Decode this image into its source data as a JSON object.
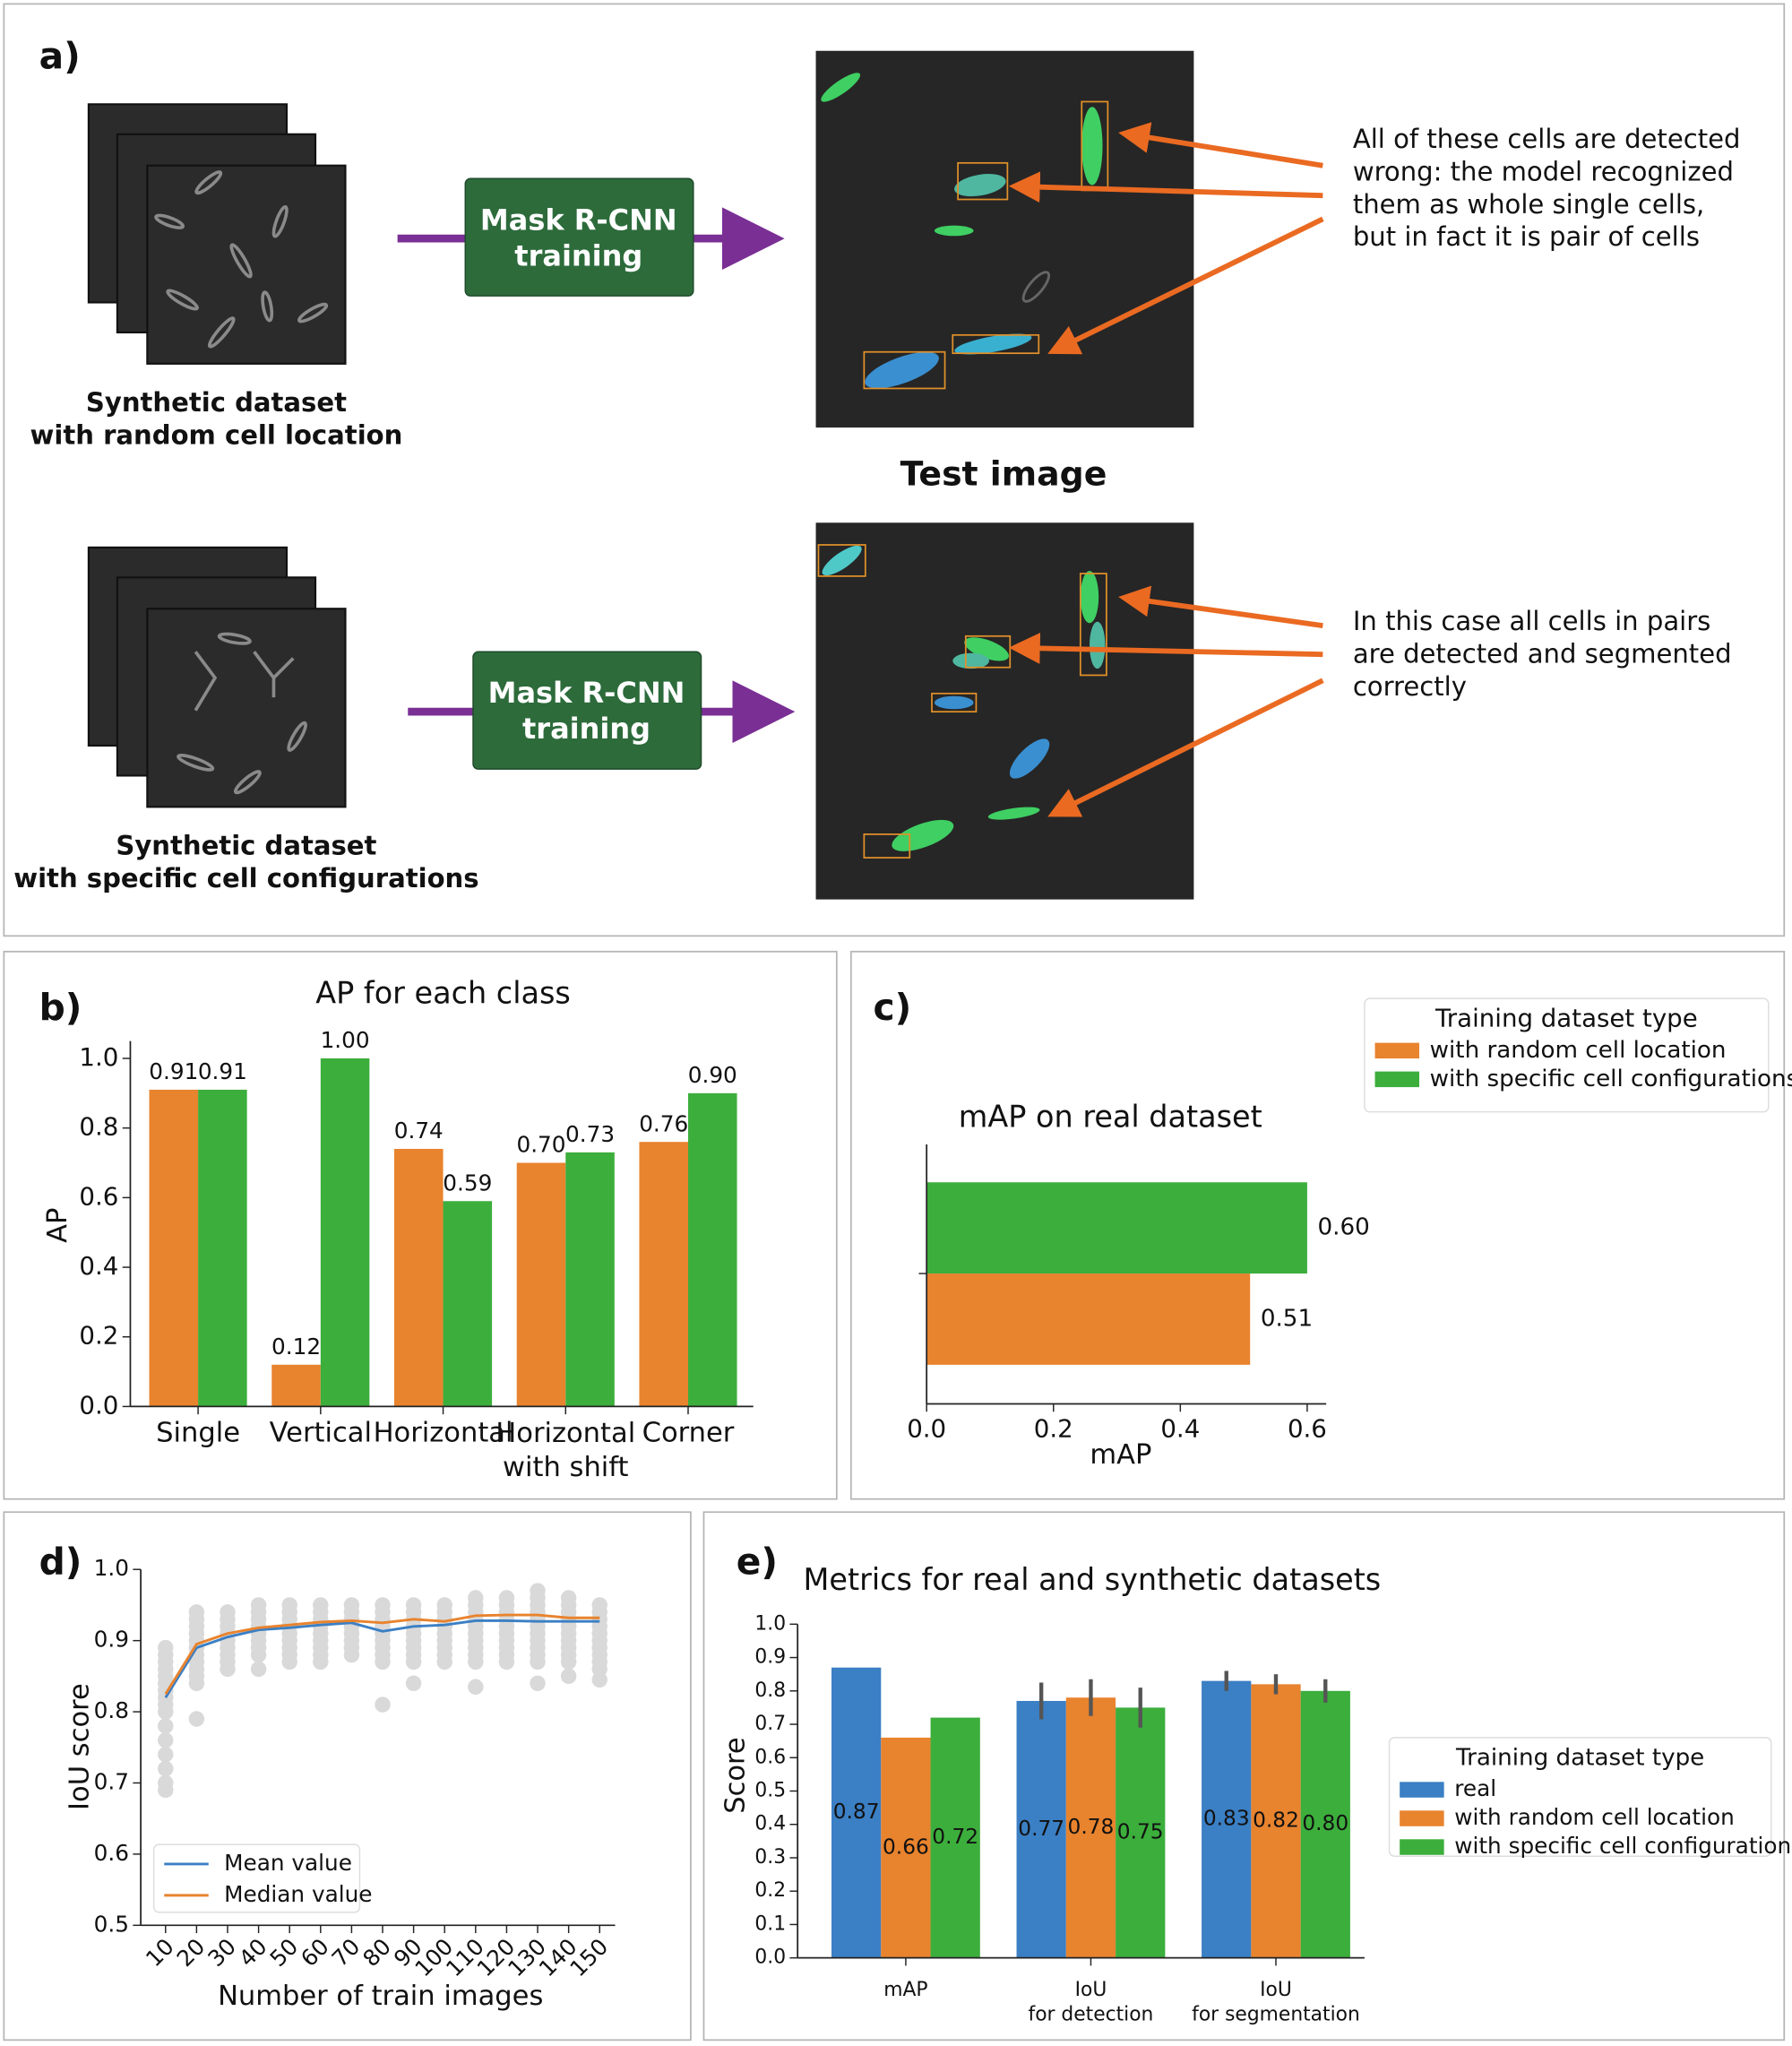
{
  "panel_a": {
    "label": "a)",
    "test_image_label": "Test image",
    "rows": [
      {
        "dataset": "Synthetic dataset\nwith random cell location",
        "model": "Mask R-CNN\ntraining",
        "annotation": "All of these cells are detected\nwrong: the model recognized\nthem as whole single cells,\nbut in fact it is pair of cells"
      },
      {
        "dataset": "Synthetic dataset\nwith specific cell configurations",
        "model": "Mask R-CNN\ntraining",
        "annotation": "In this case all cells in pairs\nare detected and segmented\ncorrectly"
      }
    ]
  },
  "chart_data": [
    {
      "type": "bar",
      "panel_label": "b)",
      "title": "AP for each class",
      "ylabel": "AP",
      "categories": [
        "Single",
        "Vertical",
        "Horizontal",
        "Horizontal\nwith shift",
        "Corner"
      ],
      "series": [
        {
          "name": "with random cell location",
          "color": "#e8832e",
          "values": [
            0.91,
            0.12,
            0.74,
            0.7,
            0.76
          ],
          "value_labels": [
            "0.91",
            "0.12",
            "0.74",
            "0.70",
            "0.76"
          ]
        },
        {
          "name": "with specific cell configurations",
          "color": "#3cae3c",
          "values": [
            0.91,
            1.0,
            0.59,
            0.73,
            0.9
          ],
          "value_labels": [
            "0.91",
            "1.00",
            "0.59",
            "0.73",
            "0.90"
          ]
        }
      ],
      "ylim": [
        0,
        1.05
      ],
      "yticks": [
        {
          "value": 0,
          "label": "0.0"
        },
        {
          "value": 0.2,
          "label": "0.2"
        },
        {
          "value": 0.4,
          "label": "0.4"
        },
        {
          "value": 0.6,
          "label": "0.6"
        },
        {
          "value": 0.8,
          "label": "0.8"
        },
        {
          "value": 1,
          "label": "1.0"
        }
      ],
      "value_label_position": "above"
    },
    {
      "type": "barh",
      "panel_label": "c)",
      "title": "mAP on real dataset",
      "xlabel": "mAP",
      "categories": [
        null
      ],
      "series": [
        {
          "name": "with random cell location",
          "color": "#e8832e",
          "values": [
            0.51
          ],
          "value_labels": [
            "0.51"
          ]
        },
        {
          "name": "with specific cell configurations",
          "color": "#3cae3c",
          "values": [
            0.6
          ],
          "value_labels": [
            "0.60"
          ]
        }
      ],
      "xlim": [
        0,
        0.63
      ],
      "xticks": [
        {
          "value": 0,
          "label": "0.0"
        },
        {
          "value": 0.2,
          "label": "0.2"
        },
        {
          "value": 0.4,
          "label": "0.4"
        },
        {
          "value": 0.6,
          "label": "0.6"
        }
      ],
      "legend_title": "Training dataset type",
      "legend": "upper right"
    },
    {
      "type": "line",
      "panel_label": "d)",
      "xlabel": "Number of train images",
      "ylabel": "IoU score",
      "x": [
        10,
        20,
        30,
        40,
        50,
        60,
        70,
        80,
        90,
        100,
        110,
        120,
        130,
        140,
        150
      ],
      "series": [
        {
          "name": "Mean value",
          "color": "#3b7fc4",
          "values": [
            0.82,
            0.89,
            0.905,
            0.915,
            0.918,
            0.922,
            0.925,
            0.913,
            0.92,
            0.922,
            0.928,
            0.928,
            0.927,
            0.927,
            0.927
          ]
        },
        {
          "name": "Median value",
          "color": "#e8832e",
          "values": [
            0.825,
            0.895,
            0.91,
            0.918,
            0.922,
            0.926,
            0.928,
            0.925,
            0.93,
            0.927,
            0.935,
            0.936,
            0.936,
            0.932,
            0.932
          ]
        }
      ],
      "samples_color": "#d9d9d9",
      "samples": [
        [
          0.69,
          0.7,
          0.72,
          0.74,
          0.76,
          0.78,
          0.8,
          0.81,
          0.82,
          0.83,
          0.84,
          0.85,
          0.86,
          0.87,
          0.88,
          0.89
        ],
        [
          0.79,
          0.84,
          0.85,
          0.86,
          0.87,
          0.88,
          0.89,
          0.9,
          0.91,
          0.92,
          0.93,
          0.94
        ],
        [
          0.86,
          0.87,
          0.88,
          0.89,
          0.9,
          0.91,
          0.92,
          0.93,
          0.94
        ],
        [
          0.86,
          0.88,
          0.89,
          0.9,
          0.91,
          0.92,
          0.93,
          0.94,
          0.95
        ],
        [
          0.87,
          0.88,
          0.89,
          0.9,
          0.91,
          0.92,
          0.93,
          0.94,
          0.95
        ],
        [
          0.87,
          0.88,
          0.89,
          0.9,
          0.91,
          0.92,
          0.93,
          0.94,
          0.95
        ],
        [
          0.88,
          0.89,
          0.9,
          0.91,
          0.92,
          0.93,
          0.94,
          0.95
        ],
        [
          0.81,
          0.87,
          0.88,
          0.89,
          0.9,
          0.91,
          0.92,
          0.93,
          0.94,
          0.95
        ],
        [
          0.84,
          0.87,
          0.88,
          0.89,
          0.9,
          0.91,
          0.92,
          0.93,
          0.94,
          0.95
        ],
        [
          0.87,
          0.88,
          0.89,
          0.9,
          0.91,
          0.92,
          0.93,
          0.94,
          0.95
        ],
        [
          0.835,
          0.87,
          0.88,
          0.89,
          0.9,
          0.91,
          0.92,
          0.93,
          0.94,
          0.95,
          0.96
        ],
        [
          0.87,
          0.88,
          0.89,
          0.9,
          0.91,
          0.92,
          0.93,
          0.94,
          0.95,
          0.96
        ],
        [
          0.84,
          0.87,
          0.88,
          0.89,
          0.9,
          0.91,
          0.92,
          0.93,
          0.94,
          0.95,
          0.96,
          0.97
        ],
        [
          0.85,
          0.87,
          0.88,
          0.89,
          0.9,
          0.91,
          0.92,
          0.93,
          0.94,
          0.95,
          0.96
        ],
        [
          0.845,
          0.86,
          0.87,
          0.88,
          0.89,
          0.9,
          0.91,
          0.92,
          0.93,
          0.94,
          0.95
        ]
      ],
      "xlim": [
        2,
        155
      ],
      "xticks": [
        10,
        20,
        30,
        40,
        50,
        60,
        70,
        80,
        90,
        100,
        110,
        120,
        130,
        140,
        150
      ],
      "ylim": [
        0.5,
        1.0
      ],
      "yticks": [
        {
          "value": 0.5,
          "label": "0.5"
        },
        {
          "value": 0.6,
          "label": "0.6"
        },
        {
          "value": 0.7,
          "label": "0.7"
        },
        {
          "value": 0.8,
          "label": "0.8"
        },
        {
          "value": 0.9,
          "label": "0.9"
        },
        {
          "value": 1,
          "label": "1.0"
        }
      ],
      "legend": "lower left"
    },
    {
      "type": "bar",
      "panel_label": "e)",
      "title": "Metrics for real and synthetic datasets",
      "ylabel": "Score",
      "categories": [
        "mAP",
        "IoU\nfor detection",
        "IoU\nfor segmentation"
      ],
      "series": [
        {
          "name": "real",
          "color": "#3b7fc4",
          "values": [
            0.87,
            0.77,
            0.83
          ],
          "value_labels": [
            "0.87",
            "0.77",
            "0.83"
          ],
          "errors": [
            null,
            0.055,
            0.03
          ]
        },
        {
          "name": "with random cell location",
          "color": "#e8832e",
          "values": [
            0.66,
            0.78,
            0.82
          ],
          "value_labels": [
            "0.66",
            "0.78",
            "0.82"
          ],
          "errors": [
            null,
            0.055,
            0.03
          ]
        },
        {
          "name": "with specific cell configurations",
          "color": "#3cae3c",
          "values": [
            0.72,
            0.75,
            0.8
          ],
          "value_labels": [
            "0.72",
            "0.75",
            "0.80"
          ],
          "errors": [
            null,
            0.06,
            0.035
          ]
        }
      ],
      "ylim": [
        0,
        1.0
      ],
      "yticks": [
        {
          "value": 0,
          "label": "0.0"
        },
        {
          "value": 0.1,
          "label": "0.1"
        },
        {
          "value": 0.2,
          "label": "0.2"
        },
        {
          "value": 0.3,
          "label": "0.3"
        },
        {
          "value": 0.4,
          "label": "0.4"
        },
        {
          "value": 0.5,
          "label": "0.5"
        },
        {
          "value": 0.6,
          "label": "0.6"
        },
        {
          "value": 0.7,
          "label": "0.7"
        },
        {
          "value": 0.8,
          "label": "0.8"
        },
        {
          "value": 0.9,
          "label": "0.9"
        },
        {
          "value": 1,
          "label": "1.0"
        }
      ],
      "value_label_position": "inside",
      "legend_title": "Training dataset type",
      "legend": "center right"
    }
  ]
}
